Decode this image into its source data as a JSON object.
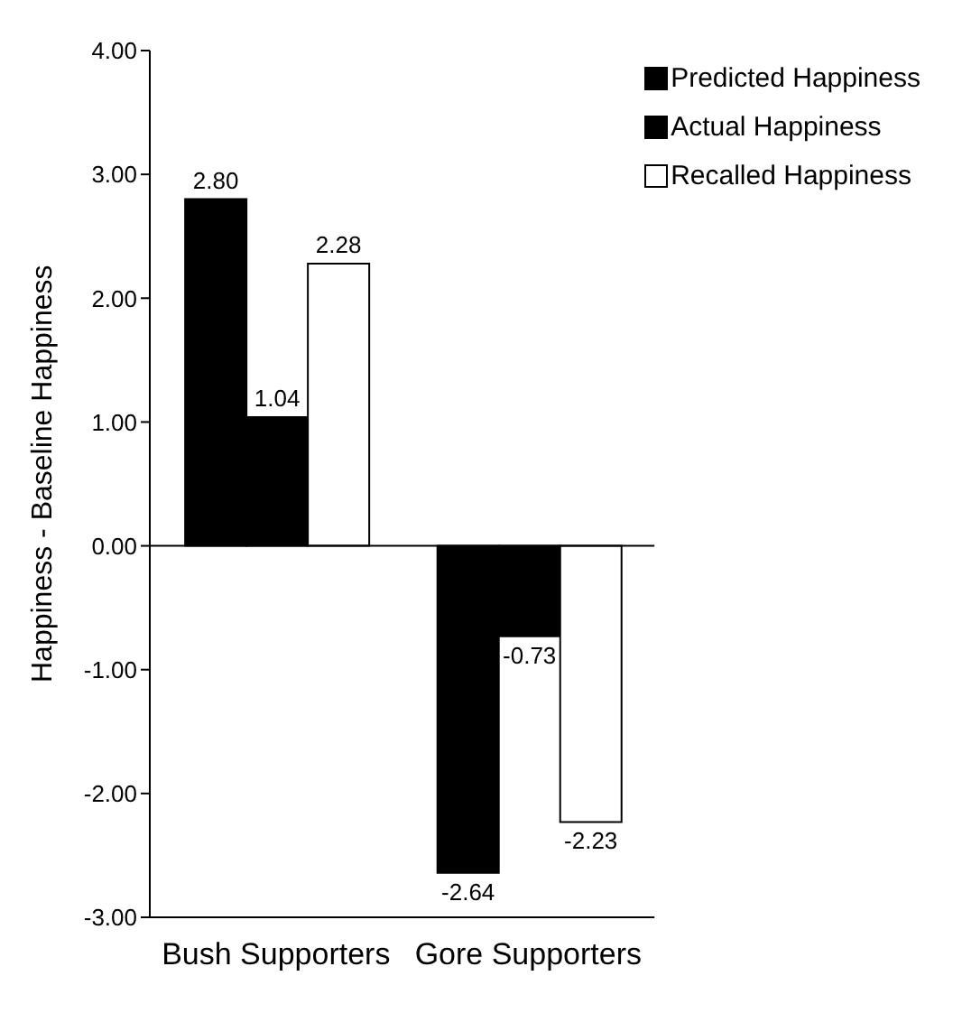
{
  "chart_data": {
    "type": "bar",
    "ylabel": "Happiness - Baseline Happiness",
    "categories": [
      "Bush Supporters",
      "Gore Supporters"
    ],
    "series": [
      {
        "name": "Predicted Happiness",
        "color": "#000000",
        "values": [
          2.8,
          -2.64
        ],
        "value_labels": [
          "2.80",
          "-2.64"
        ]
      },
      {
        "name": "Actual Happiness",
        "color": "#000000",
        "values": [
          1.04,
          -0.73
        ],
        "value_labels": [
          "1.04",
          "-0.73"
        ]
      },
      {
        "name": "Recalled Happiness",
        "color": "#ffffff",
        "values": [
          2.28,
          -2.23
        ],
        "value_labels": [
          "2.28",
          "-2.23"
        ]
      }
    ],
    "ylim": [
      -3,
      4
    ],
    "yticks": [
      {
        "value": -3,
        "label": "-3.00"
      },
      {
        "value": -2,
        "label": "-2.00"
      },
      {
        "value": -1,
        "label": "-1.00"
      },
      {
        "value": 0,
        "label": "0.00"
      },
      {
        "value": 1,
        "label": "1.00"
      },
      {
        "value": 2,
        "label": "2.00"
      },
      {
        "value": 3,
        "label": "3.00"
      },
      {
        "value": 4,
        "label": "4.00"
      }
    ],
    "ref_lines": [
      {
        "axis": "y",
        "value": 0
      }
    ],
    "grid": false,
    "legend": "top right"
  }
}
